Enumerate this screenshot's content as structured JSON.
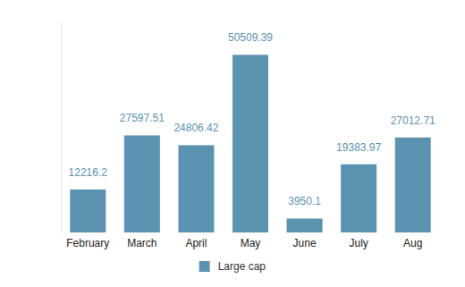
{
  "chart_data": {
    "type": "bar",
    "categories": [
      "February",
      "March",
      "April",
      "May",
      "June",
      "July",
      "Aug"
    ],
    "series": [
      {
        "name": "Large cap",
        "color": "#5b92b0",
        "values": [
          12216.2,
          27597.51,
          24806.42,
          50509.39,
          3950.1,
          19383.97,
          27012.71
        ]
      }
    ],
    "ylim": [
      0,
      60000
    ],
    "grid": false,
    "legend": "bottom",
    "data_labels": true,
    "tick_labels": "x"
  }
}
